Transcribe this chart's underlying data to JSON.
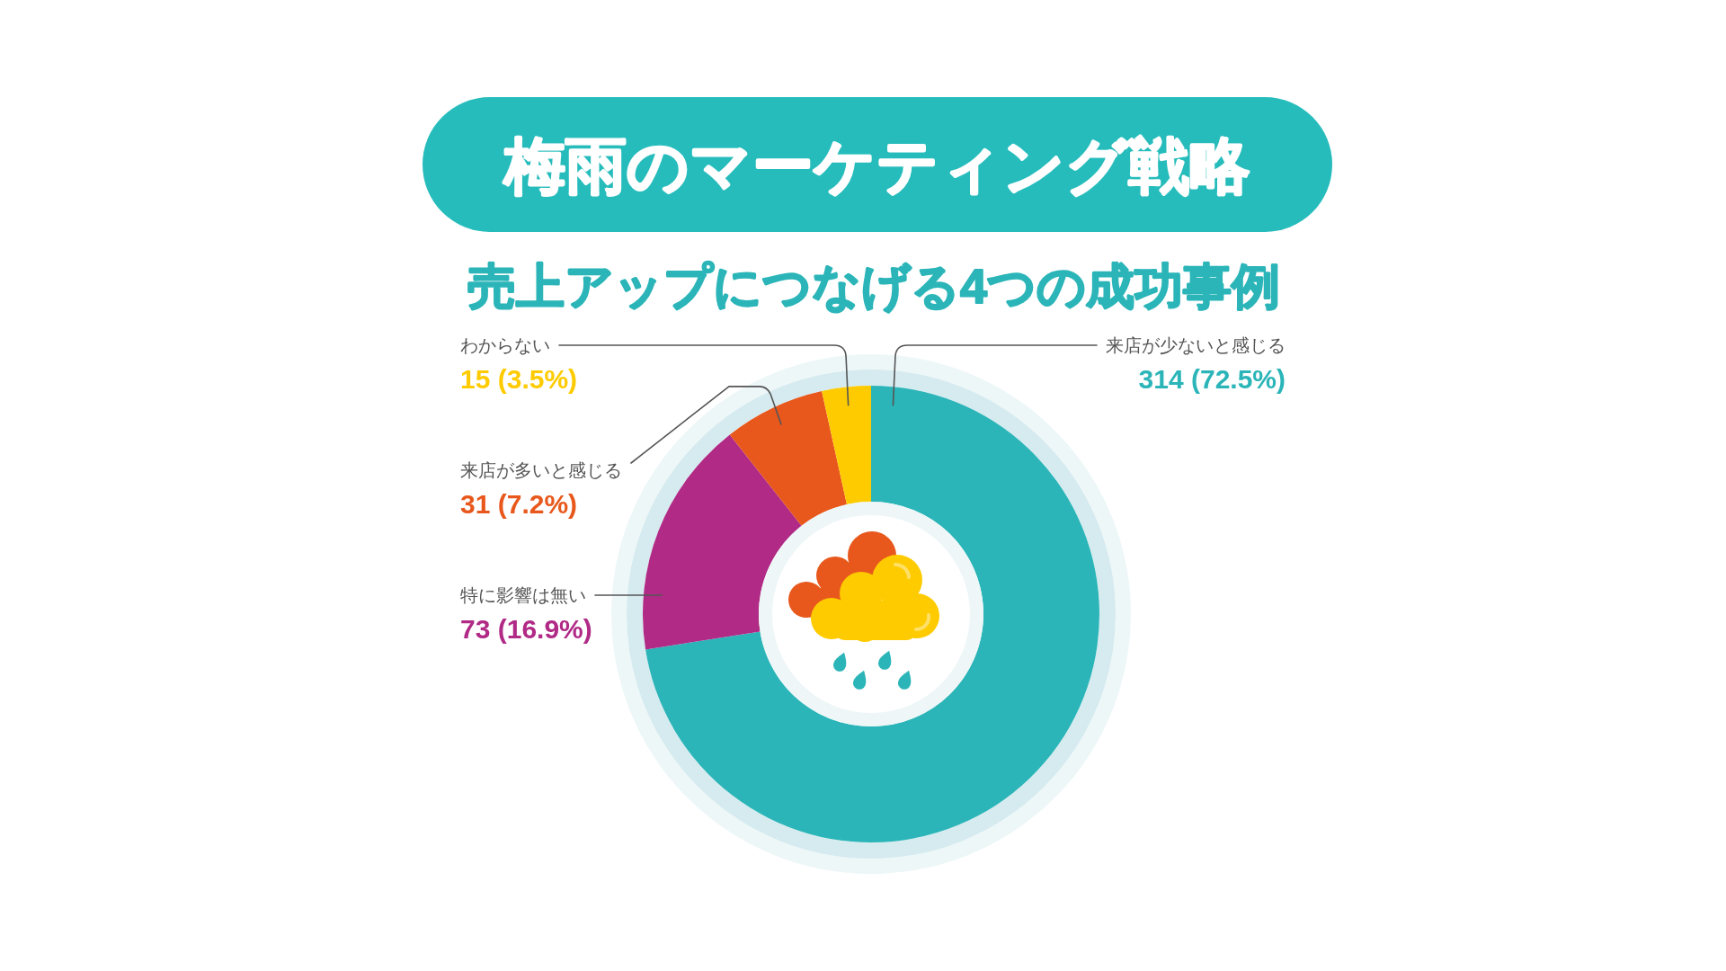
{
  "chart_data": {
    "type": "donut",
    "title": "梅雨のマーケティング戦略",
    "subtitle": "売上アップにつなげる4つの成功事例",
    "categories": [
      "来店が少ないと感じる",
      "特に影響は無い",
      "来店が多いと感じる",
      "わからない"
    ],
    "values": [
      314,
      73,
      31,
      15
    ],
    "colors": [
      "#2bb5b8",
      "#b02a86",
      "#e8581c",
      "#fecb00"
    ],
    "value_labels": [
      "314 (72.5%)",
      "73 (16.9%)",
      "31 (7.2%)",
      "15 (3.5%)"
    ]
  }
}
